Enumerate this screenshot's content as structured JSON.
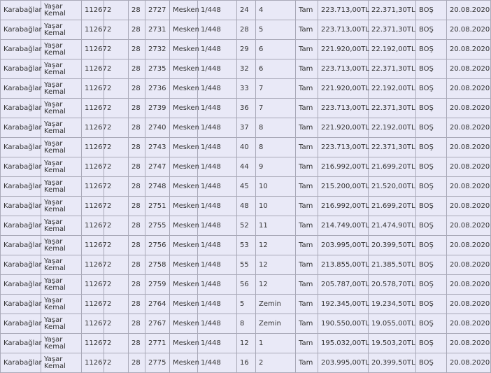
{
  "rows": [
    [
      "Karabağlar",
      "Yaşar Kemal",
      "11267",
      "2",
      "28",
      "2727",
      "Mesken",
      "1/448",
      "24",
      "4",
      "Tam",
      "223.713,00TL",
      "22.371,30TL",
      "BOŞ",
      "20.08.2020"
    ],
    [
      "Karabağlar",
      "Yaşar Kemal",
      "11267",
      "2",
      "28",
      "2731",
      "Mesken",
      "1/448",
      "28",
      "5",
      "Tam",
      "223.713,00TL",
      "22.371,30TL",
      "BOŞ",
      "20.08.2020"
    ],
    [
      "Karabağlar",
      "Yaşar Kemal",
      "11267",
      "2",
      "28",
      "2732",
      "Mesken",
      "1/448",
      "29",
      "6",
      "Tam",
      "221.920,00TL",
      "22.192,00TL",
      "BOŞ",
      "20.08.2020"
    ],
    [
      "Karabağlar",
      "Yaşar Kemal",
      "11267",
      "2",
      "28",
      "2735",
      "Mesken",
      "1/448",
      "32",
      "6",
      "Tam",
      "223.713,00TL",
      "22.371,30TL",
      "BOŞ",
      "20.08.2020"
    ],
    [
      "Karabağlar",
      "Yaşar Kemal",
      "11267",
      "2",
      "28",
      "2736",
      "Mesken",
      "1/448",
      "33",
      "7",
      "Tam",
      "221.920,00TL",
      "22.192,00TL",
      "BOŞ",
      "20.08.2020"
    ],
    [
      "Karabağlar",
      "Yaşar Kemal",
      "11267",
      "2",
      "28",
      "2739",
      "Mesken",
      "1/448",
      "36",
      "7",
      "Tam",
      "223.713,00TL",
      "22.371,30TL",
      "BOŞ",
      "20.08.2020"
    ],
    [
      "Karabağlar",
      "Yaşar Kemal",
      "11267",
      "2",
      "28",
      "2740",
      "Mesken",
      "1/448",
      "37",
      "8",
      "Tam",
      "221.920,00TL",
      "22.192,00TL",
      "BOŞ",
      "20.08.2020"
    ],
    [
      "Karabağlar",
      "Yaşar Kemal",
      "11267",
      "2",
      "28",
      "2743",
      "Mesken",
      "1/448",
      "40",
      "8",
      "Tam",
      "223.713,00TL",
      "22.371,30TL",
      "BOŞ",
      "20.08.2020"
    ],
    [
      "Karabağlar",
      "Yaşar Kemal",
      "11267",
      "2",
      "28",
      "2747",
      "Mesken",
      "1/448",
      "44",
      "9",
      "Tam",
      "216.992,00TL",
      "21.699,20TL",
      "BOŞ",
      "20.08.2020"
    ],
    [
      "Karabağlar",
      "Yaşar Kemal",
      "11267",
      "2",
      "28",
      "2748",
      "Mesken",
      "1/448",
      "45",
      "10",
      "Tam",
      "215.200,00TL",
      "21.520,00TL",
      "BOŞ",
      "20.08.2020"
    ],
    [
      "Karabağlar",
      "Yaşar Kemal",
      "11267",
      "2",
      "28",
      "2751",
      "Mesken",
      "1/448",
      "48",
      "10",
      "Tam",
      "216.992,00TL",
      "21.699,20TL",
      "BOŞ",
      "20.08.2020"
    ],
    [
      "Karabağlar",
      "Yaşar Kemal",
      "11267",
      "2",
      "28",
      "2755",
      "Mesken",
      "1/448",
      "52",
      "11",
      "Tam",
      "214.749,00TL",
      "21.474,90TL",
      "BOŞ",
      "20.08.2020"
    ],
    [
      "Karabağlar",
      "Yaşar Kemal",
      "11267",
      "2",
      "28",
      "2756",
      "Mesken",
      "1/448",
      "53",
      "12",
      "Tam",
      "203.995,00TL",
      "20.399,50TL",
      "BOŞ",
      "20.08.2020"
    ],
    [
      "Karabağlar",
      "Yaşar Kemal",
      "11267",
      "2",
      "28",
      "2758",
      "Mesken",
      "1/448",
      "55",
      "12",
      "Tam",
      "213.855,00TL",
      "21.385,50TL",
      "BOŞ",
      "20.08.2020"
    ],
    [
      "Karabağlar",
      "Yaşar Kemal",
      "11267",
      "2",
      "28",
      "2759",
      "Mesken",
      "1/448",
      "56",
      "12",
      "Tam",
      "205.787,00TL",
      "20.578,70TL",
      "BOŞ",
      "20.08.2020"
    ],
    [
      "Karabağlar",
      "Yaşar Kemal",
      "11267",
      "2",
      "28",
      "2764",
      "Mesken",
      "1/448",
      "5",
      "Zemin",
      "Tam",
      "192.345,00TL",
      "19.234,50TL",
      "BOŞ",
      "20.08.2020"
    ],
    [
      "Karabağlar",
      "Yaşar Kemal",
      "11267",
      "2",
      "28",
      "2767",
      "Mesken",
      "1/448",
      "8",
      "Zemin",
      "Tam",
      "190.550,00TL",
      "19.055,00TL",
      "BOŞ",
      "20.08.2020"
    ],
    [
      "Karabağlar",
      "Yaşar Kemal",
      "11267",
      "2",
      "28",
      "2771",
      "Mesken",
      "1/448",
      "12",
      "1",
      "Tam",
      "195.032,00TL",
      "19.503,20TL",
      "BOŞ",
      "20.08.2020"
    ],
    [
      "Karabağlar",
      "Yaşar Kemal",
      "11267",
      "2",
      "28",
      "2775",
      "Mesken",
      "1/448",
      "16",
      "2",
      "Tam",
      "203.995,00TL",
      "20.399,50TL",
      "BOŞ",
      "20.08.2020"
    ]
  ]
}
